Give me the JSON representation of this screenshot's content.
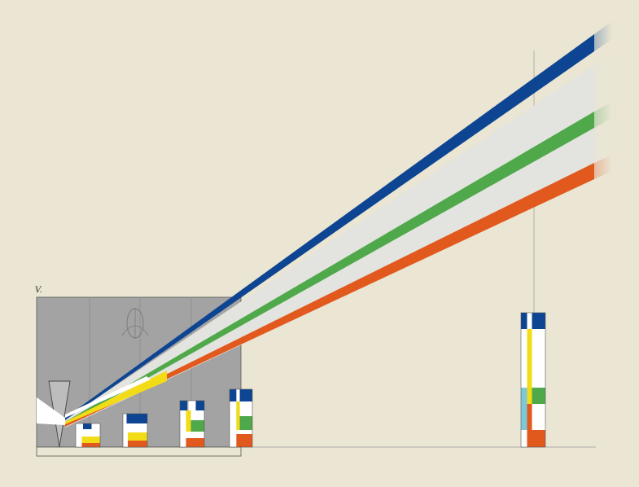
{
  "figure": {
    "plate_label": "V.",
    "background": "#ebe6d3"
  },
  "colors": {
    "blue": "#0d4592",
    "green": "#4fa94a",
    "orange": "#e2591e",
    "yellow": "#f2dc17",
    "cyan": "#7cc8d9",
    "white": "#ffffff",
    "gray_box": "#a3a3a3",
    "light_band": "#e3e3df",
    "line": "#6e6e6e"
  },
  "beams": [
    {
      "name": "blue",
      "color": "#0d4592"
    },
    {
      "name": "green",
      "color": "#4fa94a"
    },
    {
      "name": "orange",
      "color": "#e2591e"
    }
  ],
  "spectrum_bars": [
    {
      "name": "spectrum-bar-1",
      "segments": [
        "white",
        "blue",
        "yellow",
        "orange"
      ]
    },
    {
      "name": "spectrum-bar-2",
      "segments": [
        "white",
        "blue",
        "yellow",
        "orange"
      ]
    },
    {
      "name": "spectrum-bar-3",
      "segments": [
        "white",
        "blue",
        "yellow",
        "green",
        "orange"
      ]
    },
    {
      "name": "spectrum-bar-4",
      "segments": [
        "white",
        "blue",
        "yellow",
        "green",
        "orange"
      ]
    },
    {
      "name": "spectrum-bar-far",
      "segments": [
        "white",
        "blue",
        "yellow",
        "cyan",
        "green",
        "orange"
      ]
    }
  ]
}
